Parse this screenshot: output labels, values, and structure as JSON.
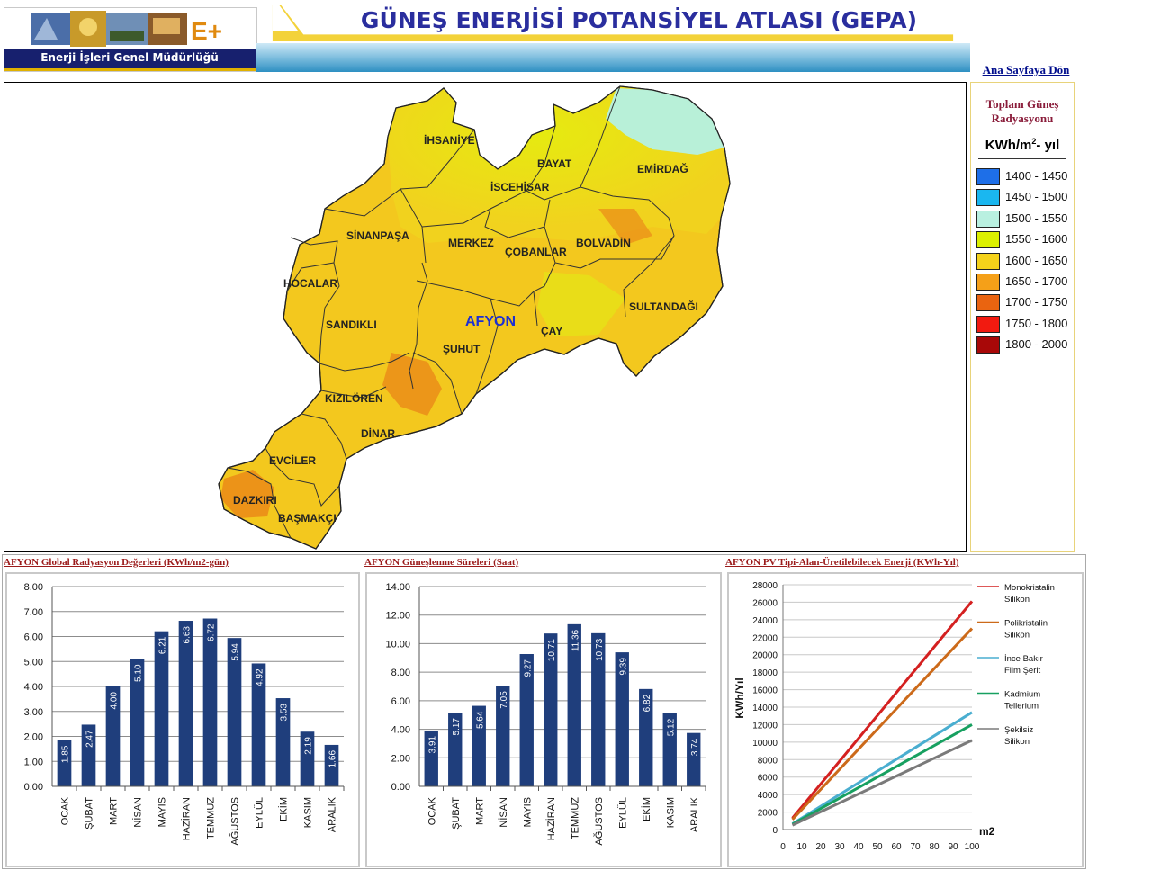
{
  "header": {
    "title": "GÜNEŞ ENERJİSİ POTANSİYEL ATLASI (GEPA)",
    "logo_caption": "Enerji İşleri Genel Müdürlüğü",
    "logo_mark": "E+",
    "home_link": "Ana Sayfaya Dön"
  },
  "map": {
    "province_label": "AFYON",
    "districts": [
      "İHSANİYE",
      "BAYAT",
      "EMİRDAĞ",
      "İSCEHİSAR",
      "SİNANPAŞA",
      "MERKEZ",
      "ÇOBANLAR",
      "BOLVADİN",
      "HOCALAR",
      "SULTANDAĞI",
      "SANDIKLI",
      "ÇAY",
      "ŞUHUT",
      "KIZILÖREN",
      "DİNAR",
      "EVCİLER",
      "DAZKIRI",
      "BAŞMAKÇI"
    ]
  },
  "legend": {
    "title_line1": "Toplam Güneş",
    "title_line2": "Radyasyonu",
    "unit_main": "KWh/m",
    "unit_sup": "2",
    "unit_tail": "- yıl",
    "items": [
      {
        "label": "1400 - 1450",
        "color": "#1e6fe8"
      },
      {
        "label": "1450 - 1500",
        "color": "#1ab7f0"
      },
      {
        "label": "1500 - 1550",
        "color": "#b9f0e0"
      },
      {
        "label": "1550 - 1600",
        "color": "#dcf000"
      },
      {
        "label": "1600 - 1650",
        "color": "#f5d21a"
      },
      {
        "label": "1650 - 1700",
        "color": "#f5a018"
      },
      {
        "label": "1700 - 1750",
        "color": "#ea6410"
      },
      {
        "label": "1750 - 1800",
        "color": "#f21a10"
      },
      {
        "label": "1800 - 2000",
        "color": "#a80808"
      }
    ]
  },
  "chart_data": [
    {
      "type": "bar",
      "title": "AFYON Global Radyasyon Değerleri (KWh/m2-gün)",
      "categories": [
        "OCAK",
        "ŞUBAT",
        "MART",
        "NİSAN",
        "MAYIS",
        "HAZİRAN",
        "TEMMUZ",
        "AĞUSTOS",
        "EYLÜL",
        "EKİM",
        "KASIM",
        "ARALIK"
      ],
      "values": [
        1.85,
        2.47,
        4.0,
        5.1,
        6.21,
        6.63,
        6.72,
        5.94,
        4.92,
        3.53,
        2.19,
        1.66
      ],
      "value_labels": [
        "1.85",
        "2.47",
        "4.00",
        "5.10",
        "6.21",
        "6.63",
        "6.72",
        "5.94",
        "4.92",
        "3.53",
        "2.19",
        "1.66"
      ],
      "ylim": [
        0,
        8
      ],
      "yticks": [
        "0.00",
        "1.00",
        "2.00",
        "3.00",
        "4.00",
        "5.00",
        "6.00",
        "7.00",
        "8.00"
      ],
      "xlabel": "",
      "ylabel": "",
      "grid": true,
      "bar_color": "#1f3e7c"
    },
    {
      "type": "bar",
      "title": "AFYON Güneşlenme Süreleri (Saat)",
      "categories": [
        "OCAK",
        "ŞUBAT",
        "MART",
        "NİSAN",
        "MAYIS",
        "HAZİRAN",
        "TEMMUZ",
        "AĞUSTOS",
        "EYLÜL",
        "EKİM",
        "KASIM",
        "ARALIK"
      ],
      "values": [
        3.91,
        5.17,
        5.64,
        7.05,
        9.27,
        10.71,
        11.36,
        10.73,
        9.39,
        6.82,
        5.12,
        3.74
      ],
      "value_labels": [
        "3.91",
        "5.17",
        "5.64",
        "7.05",
        "9.27",
        "10.71",
        "11.36",
        "10.73",
        "9.39",
        "6.82",
        "5.12",
        "3.74"
      ],
      "ylim": [
        0,
        14
      ],
      "yticks": [
        "0.00",
        "2.00",
        "4.00",
        "6.00",
        "8.00",
        "10.00",
        "12.00",
        "14.00"
      ],
      "xlabel": "",
      "ylabel": "",
      "grid": true,
      "bar_color": "#1f3e7c"
    },
    {
      "type": "line",
      "title": "AFYON PV Tipi-Alan-Üretilebilecek Enerji (KWh-Yıl)",
      "x": [
        5,
        100
      ],
      "xticks": [
        "0",
        "10",
        "20",
        "30",
        "40",
        "50",
        "60",
        "70",
        "80",
        "90",
        "100"
      ],
      "xlim": [
        0,
        100
      ],
      "ylim": [
        0,
        28000
      ],
      "yticks": [
        "0",
        "2000",
        "4000",
        "6000",
        "8000",
        "10000",
        "12000",
        "14000",
        "16000",
        "18000",
        "20000",
        "22000",
        "24000",
        "26000",
        "28000"
      ],
      "xlabel": "m2",
      "ylabel": "KWh/Yıl",
      "grid": true,
      "legend_position": "right",
      "series": [
        {
          "name": "Monokristalin Silikon",
          "values": [
            1300,
            26100
          ],
          "color": "#d42020"
        },
        {
          "name": "Polikristalin Silikon",
          "values": [
            1150,
            23000
          ],
          "color": "#cc6a1a"
        },
        {
          "name": "İnce Bakır Film Şerit",
          "values": [
            650,
            13400
          ],
          "color": "#4aaed0"
        },
        {
          "name": "Kadmium Tellerium",
          "values": [
            600,
            12000
          ],
          "color": "#17a060"
        },
        {
          "name": "Şekilsiz Silikon",
          "values": [
            500,
            10200
          ],
          "color": "#7a7a7a"
        }
      ]
    }
  ]
}
